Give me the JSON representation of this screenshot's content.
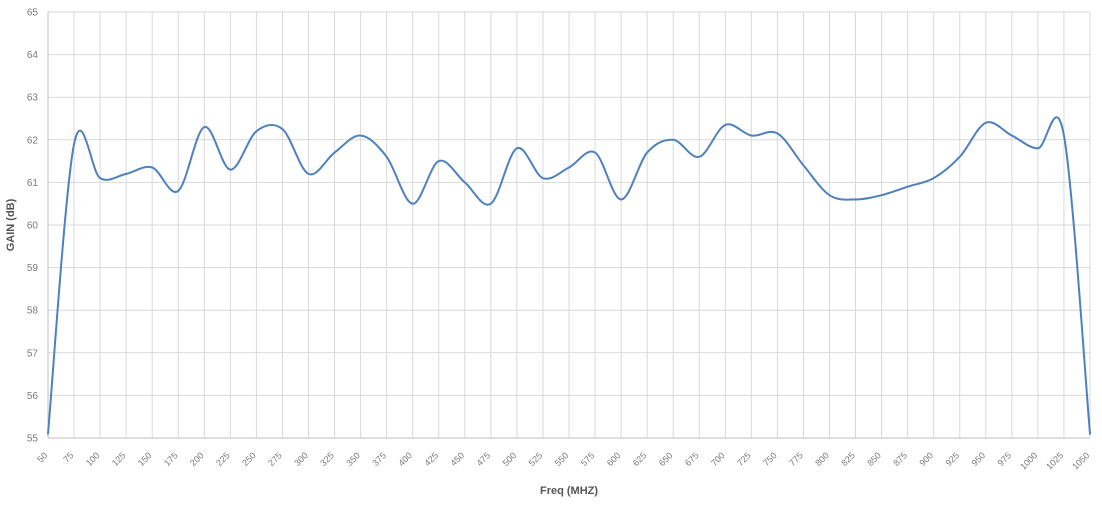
{
  "colors": {
    "line": "#4f81bd",
    "grid": "#d9d9d9",
    "axis": "#bfbfbf",
    "text": "#7a7a7a"
  },
  "chart_data": {
    "type": "line",
    "xlabel": "Freq (MHZ)",
    "ylabel": "GAIN (dB)",
    "ylim": [
      55,
      65
    ],
    "yticks": [
      55,
      56,
      57,
      58,
      59,
      60,
      61,
      62,
      63,
      64,
      65
    ],
    "grid": true,
    "legend": "none",
    "categories": [
      "50",
      "75",
      "100",
      "125",
      "150",
      "175",
      "200",
      "225",
      "250",
      "275",
      "300",
      "325",
      "350",
      "375",
      "400",
      "425",
      "450",
      "475",
      "500",
      "525",
      "550",
      "575",
      "600",
      "625",
      "650",
      "675",
      "700",
      "725",
      "750",
      "775",
      "800",
      "825",
      "850",
      "875",
      "900",
      "925",
      "950",
      "975",
      "1000",
      "1025",
      "1050"
    ],
    "series": [
      {
        "values": [
          55.1,
          61.9,
          61.1,
          61.2,
          61.35,
          60.8,
          62.3,
          61.3,
          62.2,
          62.25,
          61.2,
          61.7,
          62.1,
          61.6,
          60.5,
          61.5,
          61.0,
          60.5,
          61.8,
          61.1,
          61.35,
          61.7,
          60.6,
          61.7,
          62.0,
          61.6,
          62.35,
          62.1,
          62.15,
          61.4,
          60.7,
          60.6,
          60.7,
          60.9,
          61.1,
          61.6,
          62.4,
          62.1,
          61.8,
          62.1,
          55.1
        ]
      }
    ]
  }
}
